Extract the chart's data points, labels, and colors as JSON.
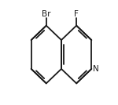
{
  "bg_color": "#ffffff",
  "line_color": "#1a1a1a",
  "line_width": 1.3,
  "font_size": 7.5,
  "font_color": "#1a1a1a",
  "label_br": "Br",
  "label_f": "F",
  "label_n": "N",
  "figw": 1.5,
  "figh": 1.34,
  "dpi": 100
}
